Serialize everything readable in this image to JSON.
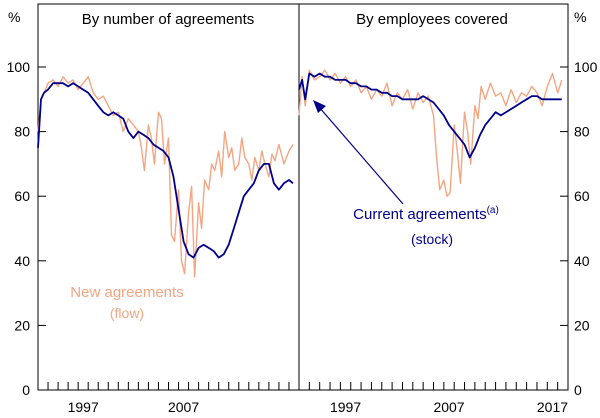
{
  "chart_data": [
    {
      "type": "line",
      "title": "By number of agreements",
      "y_unit_left": "%",
      "ylim": [
        0,
        100
      ],
      "yticks": [
        0,
        20,
        40,
        60,
        80,
        100
      ],
      "xlim": [
        1993,
        2019
      ],
      "xticks": [
        "1997",
        "2007"
      ],
      "grid": false,
      "series": [
        {
          "name": "New agreements",
          "name_sub": "(flow)",
          "color": "#f4a582",
          "x": [
            1993,
            1993.3,
            1993.6,
            1994,
            1994.5,
            1995,
            1995.5,
            1996,
            1996.5,
            1997,
            1997.5,
            1998,
            1998.5,
            1999,
            1999.5,
            2000,
            2000.5,
            2001,
            2001.5,
            2002,
            2002.5,
            2003,
            2003.3,
            2003.6,
            2004,
            2004.3,
            2004.6,
            2005,
            2005.3,
            2005.6,
            2006,
            2006.3,
            2006.6,
            2007,
            2007.3,
            2007.6,
            2008,
            2008.3,
            2008.6,
            2009,
            2009.3,
            2009.6,
            2010,
            2010.3,
            2010.6,
            2011,
            2011.3,
            2011.6,
            2012,
            2012.3,
            2012.6,
            2013,
            2013.3,
            2013.6,
            2014,
            2014.3,
            2014.6,
            2015,
            2015.3,
            2015.6,
            2016,
            2016.3,
            2016.6,
            2017,
            2017.5,
            2018,
            2018.4
          ],
          "values": [
            80,
            90,
            92,
            95,
            96,
            94,
            97,
            95,
            96,
            93,
            95,
            97,
            92,
            90,
            91,
            88,
            85,
            86,
            80,
            84,
            82,
            80,
            75,
            68,
            82,
            78,
            70,
            86,
            84,
            70,
            78,
            48,
            46,
            62,
            40,
            36,
            55,
            63,
            35,
            58,
            50,
            65,
            62,
            70,
            68,
            74,
            66,
            80,
            72,
            75,
            68,
            70,
            78,
            72,
            70,
            65,
            72,
            68,
            74,
            70,
            66,
            73,
            71,
            76,
            70,
            74,
            76
          ]
        },
        {
          "name": "Current agreements",
          "color": "#00008b",
          "x": [
            1993,
            1993.3,
            1993.6,
            1994,
            1994.5,
            1995,
            1995.5,
            1996,
            1996.5,
            1997,
            1997.5,
            1998,
            1998.5,
            1999,
            1999.5,
            2000,
            2000.5,
            2001,
            2001.5,
            2002,
            2002.5,
            2003,
            2003.5,
            2004,
            2004.5,
            2005,
            2005.5,
            2006,
            2006.5,
            2007,
            2007.5,
            2008,
            2008.5,
            2009,
            2009.5,
            2010,
            2010.5,
            2011,
            2011.5,
            2012,
            2012.5,
            2013,
            2013.5,
            2014,
            2014.5,
            2015,
            2015.5,
            2016,
            2016.5,
            2017,
            2017.5,
            2018,
            2018.4
          ],
          "values": [
            75,
            90,
            92,
            93,
            95,
            95,
            95,
            94,
            95,
            94,
            93,
            92,
            90,
            88,
            86,
            85,
            86,
            85,
            84,
            80,
            78,
            80,
            79,
            78,
            76,
            75,
            74,
            72,
            66,
            56,
            46,
            42,
            41,
            44,
            45,
            44,
            43,
            41,
            42,
            45,
            50,
            55,
            60,
            62,
            64,
            68,
            70,
            70,
            64,
            62,
            64,
            65,
            64
          ]
        }
      ]
    },
    {
      "type": "line",
      "title": "By employees covered",
      "y_unit_right": "%",
      "ylim": [
        0,
        100
      ],
      "yticks": [
        0,
        20,
        40,
        60,
        80,
        100
      ],
      "xlim": [
        1993,
        2019
      ],
      "xticks": [
        "1997",
        "2007",
        "2017"
      ],
      "grid": false,
      "series": [
        {
          "name": "New agreements",
          "color": "#f4a582",
          "x": [
            1993,
            1993.3,
            1993.6,
            1994,
            1994.5,
            1995,
            1995.5,
            1996,
            1996.5,
            1997,
            1997.5,
            1998,
            1998.5,
            1999,
            1999.5,
            2000,
            2000.5,
            2001,
            2001.5,
            2002,
            2002.5,
            2003,
            2003.5,
            2004,
            2004.5,
            2005,
            2005.5,
            2006,
            2006.3,
            2006.6,
            2007,
            2007.3,
            2007.6,
            2008,
            2008.3,
            2008.6,
            2009,
            2009.3,
            2009.6,
            2010,
            2010.3,
            2010.6,
            2011,
            2011.5,
            2012,
            2012.5,
            2013,
            2013.5,
            2014,
            2014.5,
            2015,
            2015.5,
            2016,
            2016.5,
            2017,
            2017.5,
            2018,
            2018.4
          ],
          "values": [
            85,
            97,
            88,
            99,
            96,
            97,
            99,
            96,
            98,
            95,
            97,
            94,
            96,
            92,
            94,
            90,
            93,
            91,
            95,
            88,
            92,
            90,
            93,
            87,
            92,
            89,
            91,
            85,
            72,
            62,
            65,
            60,
            61,
            82,
            74,
            64,
            86,
            80,
            70,
            88,
            84,
            94,
            90,
            95,
            91,
            92,
            88,
            93,
            89,
            92,
            91,
            94,
            92,
            88,
            94,
            98,
            92,
            96
          ]
        },
        {
          "name": "Current agreements",
          "superscript": "(a)",
          "name_sub": "(stock)",
          "color": "#00008b",
          "x": [
            1993,
            1993.3,
            1993.6,
            1994,
            1994.5,
            1995,
            1995.5,
            1996,
            1996.5,
            1997,
            1997.5,
            1998,
            1998.5,
            1999,
            1999.5,
            2000,
            2000.5,
            2001,
            2001.5,
            2002,
            2002.5,
            2003,
            2003.5,
            2004,
            2004.5,
            2005,
            2005.5,
            2006,
            2006.5,
            2007,
            2007.5,
            2008,
            2008.5,
            2009,
            2009.5,
            2010,
            2010.5,
            2011,
            2011.5,
            2012,
            2012.5,
            2013,
            2013.5,
            2014,
            2014.5,
            2015,
            2015.5,
            2016,
            2016.5,
            2017,
            2017.5,
            2018,
            2018.4
          ],
          "values": [
            93,
            96,
            90,
            98,
            97,
            98,
            97,
            97,
            96,
            96,
            96,
            95,
            95,
            94,
            94,
            93,
            93,
            92,
            92,
            91,
            91,
            90,
            90,
            90,
            90,
            91,
            90,
            89,
            87,
            85,
            82,
            80,
            78,
            76,
            72,
            75,
            79,
            82,
            84,
            86,
            85,
            86,
            87,
            88,
            89,
            90,
            91,
            91,
            90,
            90,
            90,
            90,
            90
          ]
        }
      ]
    }
  ]
}
